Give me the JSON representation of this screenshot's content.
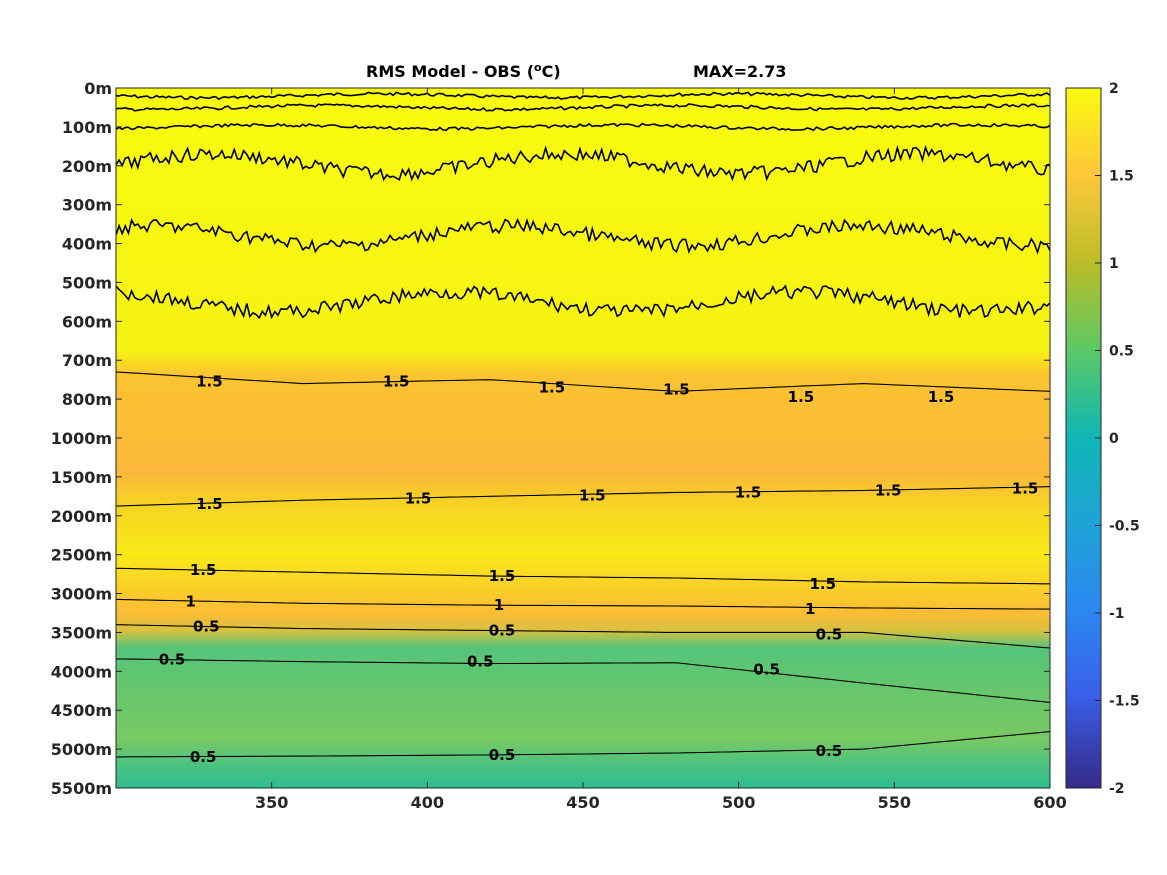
{
  "chart_data": {
    "type": "heatmap",
    "title_text": "RMS Model - OBS (",
    "title_unit_sup": "o",
    "title_unit": "C)",
    "max_label": "MAX=2.73",
    "x_ticks": [
      "350",
      "400",
      "450",
      "500",
      "550",
      "600"
    ],
    "x_tick_values": [
      350,
      400,
      450,
      500,
      550,
      600
    ],
    "xlim": [
      300,
      600
    ],
    "y_ticks": [
      "0m",
      "100m",
      "200m",
      "300m",
      "400m",
      "500m",
      "600m",
      "700m",
      "800m",
      "1000m",
      "1500m",
      "2000m",
      "2500m",
      "3000m",
      "3500m",
      "4000m",
      "4500m",
      "5000m",
      "5500m"
    ],
    "colorbar": {
      "ticks": [
        "2",
        "1.5",
        "1",
        "0.5",
        "0",
        "-0.5",
        "-1",
        "-1.5",
        "-2"
      ],
      "range": [
        -2,
        2
      ],
      "colormap": "parula"
    },
    "contours": [
      {
        "level": "1.5",
        "y_index": [
          7.3,
          7.6,
          7.5,
          7.8,
          7.6,
          7.8
        ]
      },
      {
        "level": "1.5",
        "y_index": [
          10.75,
          10.6,
          10.5,
          10.4,
          10.35,
          10.25
        ]
      },
      {
        "level": "1.5",
        "y_index": [
          12.35,
          12.45,
          12.55,
          12.6,
          12.7,
          12.75
        ]
      },
      {
        "level": "1",
        "y_index": [
          13.15,
          13.25,
          13.3,
          13.32,
          13.37,
          13.4
        ]
      },
      {
        "level": "0.5",
        "y_index": [
          13.8,
          13.9,
          13.95,
          14.0,
          14.0,
          14.4
        ]
      },
      {
        "level": "0.5",
        "y_index": [
          14.68,
          14.75,
          14.8,
          14.78,
          15.3,
          15.8
        ]
      },
      {
        "level": "0.5",
        "y_index": [
          17.2,
          17.18,
          17.15,
          17.1,
          17.0,
          16.55
        ]
      }
    ],
    "contour_labels": [
      {
        "text": "1.5",
        "x": 330,
        "y_index": 7.55
      },
      {
        "text": "1.5",
        "x": 390,
        "y_index": 7.55
      },
      {
        "text": "1.5",
        "x": 440,
        "y_index": 7.7
      },
      {
        "text": "1.5",
        "x": 480,
        "y_index": 7.75
      },
      {
        "text": "1.5",
        "x": 520,
        "y_index": 7.95
      },
      {
        "text": "1.5",
        "x": 565,
        "y_index": 7.95
      },
      {
        "text": "1.5",
        "x": 330,
        "y_index": 10.7
      },
      {
        "text": "1.5",
        "x": 397,
        "y_index": 10.55
      },
      {
        "text": "1.5",
        "x": 453,
        "y_index": 10.48
      },
      {
        "text": "1.5",
        "x": 503,
        "y_index": 10.4
      },
      {
        "text": "1.5",
        "x": 548,
        "y_index": 10.35
      },
      {
        "text": "1.5",
        "x": 592,
        "y_index": 10.3
      },
      {
        "text": "1.5",
        "x": 328,
        "y_index": 12.4
      },
      {
        "text": "1.5",
        "x": 424,
        "y_index": 12.55
      },
      {
        "text": "1.5",
        "x": 527,
        "y_index": 12.75
      },
      {
        "text": "1",
        "x": 324,
        "y_index": 13.2
      },
      {
        "text": "1",
        "x": 423,
        "y_index": 13.3
      },
      {
        "text": "1",
        "x": 523,
        "y_index": 13.4
      },
      {
        "text": "0.5",
        "x": 329,
        "y_index": 13.85
      },
      {
        "text": "0.5",
        "x": 424,
        "y_index": 13.95
      },
      {
        "text": "0.5",
        "x": 529,
        "y_index": 14.05
      },
      {
        "text": "0.5",
        "x": 318,
        "y_index": 14.7
      },
      {
        "text": "0.5",
        "x": 417,
        "y_index": 14.75
      },
      {
        "text": "0.5",
        "x": 509,
        "y_index": 14.95
      },
      {
        "text": "0.5",
        "x": 328,
        "y_index": 17.2
      },
      {
        "text": "0.5",
        "x": 424,
        "y_index": 17.15
      },
      {
        "text": "0.5",
        "x": 529,
        "y_index": 17.05
      }
    ],
    "noisy_contours": [
      {
        "level": "2",
        "y_index_base": 0.2
      },
      {
        "level": "2",
        "y_index_base": 0.5
      },
      {
        "level": "2",
        "y_index_base": 1.0
      },
      {
        "level": "2",
        "y_index_base": 1.95
      },
      {
        "level": "2",
        "y_index_base": 3.8
      },
      {
        "level": "2",
        "y_index_base": 5.5
      }
    ]
  }
}
